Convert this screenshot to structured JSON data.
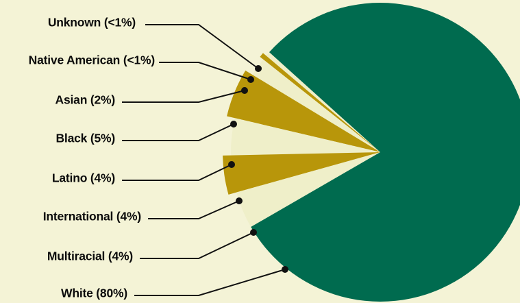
{
  "chart_data": {
    "type": "pie",
    "slices": [
      {
        "label": "Unknown (<1%)",
        "value": 0.5,
        "color": "#efefc9"
      },
      {
        "label": "Native American (<1%)",
        "value": 0.5,
        "color": "#b8960a"
      },
      {
        "label": "Asian (2%)",
        "value": 2,
        "color": "#efefc9"
      },
      {
        "label": "Black (5%)",
        "value": 5,
        "color": "#b8960a"
      },
      {
        "label": "Latino (4%)",
        "value": 4,
        "color": "#efefc9"
      },
      {
        "label": "International (4%)",
        "value": 4,
        "color": "#b8960a"
      },
      {
        "label": "Multiracial (4%)",
        "value": 4,
        "color": "#efefc9"
      },
      {
        "label": "White (80%)",
        "value": 80,
        "color": "#006b4f"
      }
    ]
  },
  "colors": {
    "background": "#f4f3d6",
    "white_slice": "#006b4f",
    "gold_slice": "#b8960a",
    "light_slice": "#efefc9",
    "text": "#0b0b0b"
  }
}
